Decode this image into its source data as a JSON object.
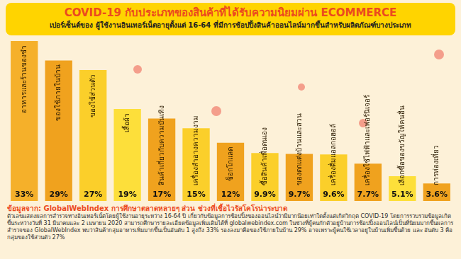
{
  "chart_data": {
    "type": "bar",
    "title": "COVID-19 กับประเภทของสินค้าที่ได้รับความนิยมผ่าน ECOMMERCE",
    "subtitle": "เปอร์เซ็นต์ของ ผู้ใช้งานอินเทอร์เน็ตอายุตั้งแต่ 16-64 ที่มีการช้อปปิ้งสินค้าออนไลน์มากขึ้นสำหรับผลิตภัณฑ์บางประเภท",
    "source": "ข้อมูลจาก: GlobalWebIndex การศึกษาตลาดหลายๆ ส่วน ช่วงที่เชื้อไวรัสโคโรน่าระบาด",
    "note": "ตัวเลขแสดงผลการสำรวจทางอินเทอร์เน็ตโดยผู้ใช้งานอายุระหว่าง 16-64 ปี เกี่ยวกับข้อมูลการช้อปปิ้งของออนไลน์ว่ามีมากน้อยเท่าใดตั้งแต่เกิดวิกฤต COVID-19 โดยการรวบรวมข้อมูลเกิดขึ้นระหว่างวันที่ 31 มีนาคมและ 2 เมษายน 2020 สามารถศึกษารายละเอียดข้อมูลเพิ่มเติมได้ที่ globalwebindex.com ในช่วงที่ผู้คนกักตัวอยู่บ้านการช้อปปิ้งออนไลน์เป็นที่นิยมมากขึ้นผลการสำรวจของ GlobalWebIndex พบว่าสินค้ากลุ่มอาหารเพิ่มมากขึ้นเป็นอันดับ 1 สูงถึง 33% รองลงมาคือของใช้ภายในบ้าน 29% อาจเพราะผู้คนใช้เวลาอยู่ในบ้านเพิ่มขึ้นด้วย และ อันดับ 3 คือกลุ่มของใช้ส่วนตัว 27%",
    "categories": [
      "อาหารและร้านของชำ",
      "ของใช้ภายในบ้าน",
      "ของใช้ส่วนตัว",
      "เสื้อผ้า",
      "สินค้าเกี่ยวกับความบันเทิง",
      "เครื่องสำอางความงาม",
      "ช็อกโกแลต",
      "ซื้อสินค้าเพื่อตนเอง",
      "ของตกแต่งบ้านและสวน",
      "เครื่องดื่มแอลกอฮอล์",
      "เครื่องใช้ไฟฟ้าและเฟอร์นิเจอร์",
      "เลือกซื้อของขวัญให้คนอื่น",
      "การท่องเที่ยว"
    ],
    "values": [
      33,
      29,
      27,
      19,
      17,
      15,
      12,
      9.9,
      9.7,
      9.6,
      7.7,
      5.1,
      3.6
    ],
    "value_labels": [
      "33%",
      "29%",
      "27%",
      "19%",
      "17%",
      "15%",
      "12%",
      "9.9%",
      "9.7%",
      "9.6%",
      "7.7%",
      "5.1%",
      "3.6%"
    ],
    "colors": [
      "#f5b02a",
      "#f0a21e",
      "#fbcf2a",
      "#fddf3a",
      "#f0a21e",
      "#fbcf2a",
      "#f0a21e",
      "#fbcf2a",
      "#f0a21e",
      "#fbcf2a",
      "#f0a21e",
      "#fddf3a",
      "#f0a21e"
    ],
    "ylim": [
      0,
      33
    ],
    "grid": false,
    "tick_labels": false,
    "data_labels": true
  }
}
